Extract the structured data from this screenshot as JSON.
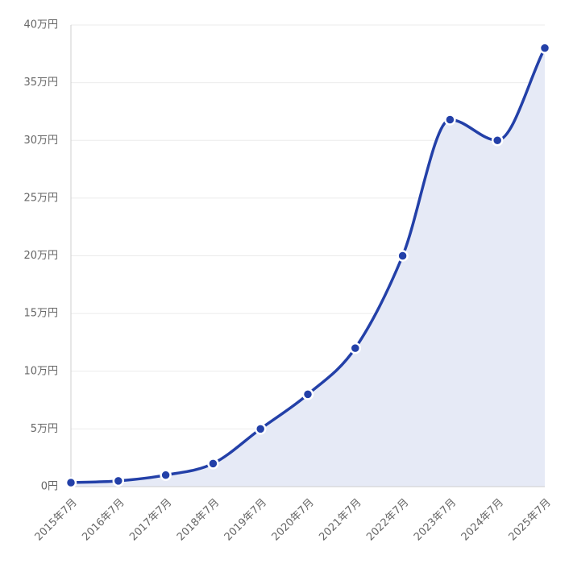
{
  "chart_data": {
    "type": "area",
    "title": "",
    "xlabel": "",
    "ylabel": "",
    "categories": [
      "2015年7月",
      "2016年7月",
      "2017年7月",
      "2018年7月",
      "2019年7月",
      "2020年7月",
      "2021年7月",
      "2022年7月",
      "2023年7月",
      "2024年7月",
      "2025年7月"
    ],
    "series": [
      {
        "values": [
          3500,
          5000,
          10000,
          20000,
          50000,
          80000,
          120000,
          200000,
          318000,
          300000,
          380000
        ]
      }
    ],
    "ylim": [
      0,
      400000
    ],
    "yticks": [
      0,
      50000,
      100000,
      150000,
      200000,
      250000,
      300000,
      350000,
      400000
    ],
    "ytick_labels": [
      "0円",
      "5万円",
      "10万円",
      "15万円",
      "20万円",
      "25万円",
      "30万円",
      "35万円",
      "40万円"
    ],
    "grid": true,
    "legend": "none",
    "colors": {
      "line": "#2340a8",
      "fill": "#e6eaf6",
      "grid": "#ebebeb"
    }
  }
}
